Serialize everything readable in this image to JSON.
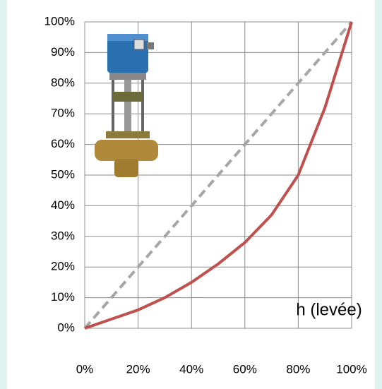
{
  "chart_data": {
    "type": "line",
    "annotation": "h (levée)",
    "x": [
      0,
      10,
      20,
      30,
      40,
      50,
      60,
      70,
      80,
      90,
      100
    ],
    "series": [
      {
        "color": "#a6a6a6",
        "dashed": true,
        "values": [
          0,
          10,
          20,
          30,
          40,
          50,
          60,
          70,
          80,
          90,
          100
        ]
      },
      {
        "color": "#c0504d",
        "dashed": false,
        "values": [
          0,
          3,
          6,
          10,
          15,
          21,
          28,
          37,
          50,
          72,
          100
        ]
      }
    ],
    "xlim": [
      0,
      100
    ],
    "ylim": [
      0,
      100
    ],
    "xticks": [
      {
        "value": 0,
        "label": "0%"
      },
      {
        "value": 20,
        "label": "20%"
      },
      {
        "value": 40,
        "label": "40%"
      },
      {
        "value": 60,
        "label": "60%"
      },
      {
        "value": 80,
        "label": "80%"
      },
      {
        "value": 100,
        "label": "100%"
      }
    ],
    "yticks": [
      {
        "value": 0,
        "label": "0%"
      },
      {
        "value": 10,
        "label": "10%"
      },
      {
        "value": 20,
        "label": "20%"
      },
      {
        "value": 30,
        "label": "30%"
      },
      {
        "value": 40,
        "label": "40%"
      },
      {
        "value": 50,
        "label": "50%"
      },
      {
        "value": 60,
        "label": "60%"
      },
      {
        "value": 70,
        "label": "70%"
      },
      {
        "value": 80,
        "label": "80%"
      },
      {
        "value": 90,
        "label": "90%"
      },
      {
        "value": 100,
        "label": "100%"
      }
    ],
    "grid": true
  }
}
